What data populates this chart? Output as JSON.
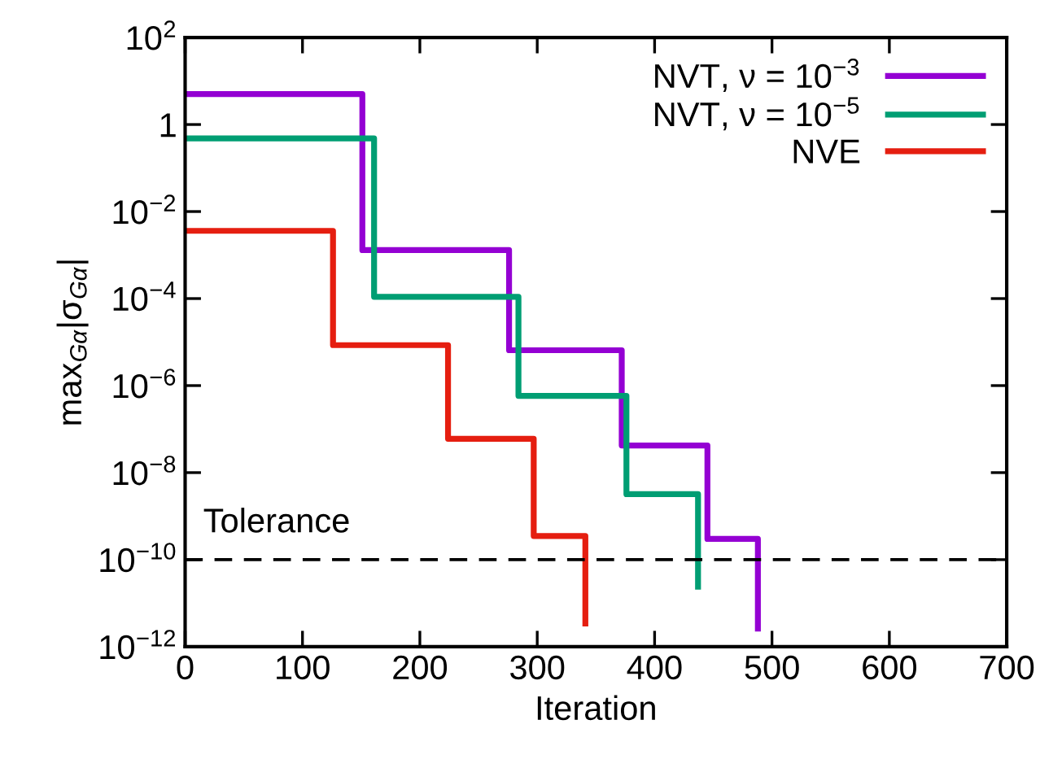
{
  "chart_data": {
    "type": "step",
    "xlabel": "Iteration",
    "ylabel": "max$_{Gα}$|σ$_{Gα}$|",
    "series": [
      {
        "name": "NVT, ν = 10$^{−3}$",
        "color": "#9400d3",
        "x": [
          0,
          151,
          276,
          372,
          445,
          488
        ],
        "values": [
          5,
          0.0013,
          6.5e-06,
          4.2e-08,
          3e-10,
          2.6e-12
        ]
      },
      {
        "name": "NVT, ν = 10$^{−5}$",
        "color": "#009e73",
        "x": [
          0,
          161,
          284,
          376,
          437
        ],
        "values": [
          0.48,
          0.00011,
          5.8e-07,
          3.2e-09,
          2.4e-11
        ]
      },
      {
        "name": "NVE",
        "color": "#e51e10",
        "x": [
          0,
          126,
          224,
          297,
          341
        ],
        "values": [
          0.0036,
          8.5e-06,
          6e-08,
          3.5e-10,
          3.4e-12
        ]
      }
    ],
    "log": "y",
    "xlim": [
      0,
      700
    ],
    "xticks": [
      0,
      100,
      200,
      300,
      400,
      500,
      600,
      700
    ],
    "ylim": [
      1e-12,
      100
    ],
    "yticks": [
      {
        "value": 1e-12,
        "label": "10$^{−12}$"
      },
      {
        "value": 1e-10,
        "label": "10$^{−10}$"
      },
      {
        "value": 1e-08,
        "label": "10$^{−8}$"
      },
      {
        "value": 1e-06,
        "label": "10$^{−6}$"
      },
      {
        "value": 0.0001,
        "label": "10$^{−4}$"
      },
      {
        "value": 0.01,
        "label": "10$^{−2}$"
      },
      1,
      {
        "value": 100,
        "label": "10$^{2}$"
      }
    ],
    "ref_lines": [
      {
        "axis": "y",
        "value": 1e-10,
        "label": "Tolerance",
        "color": "#000000",
        "line_style": "dashed"
      }
    ],
    "legend": "top right",
    "grid": false
  }
}
